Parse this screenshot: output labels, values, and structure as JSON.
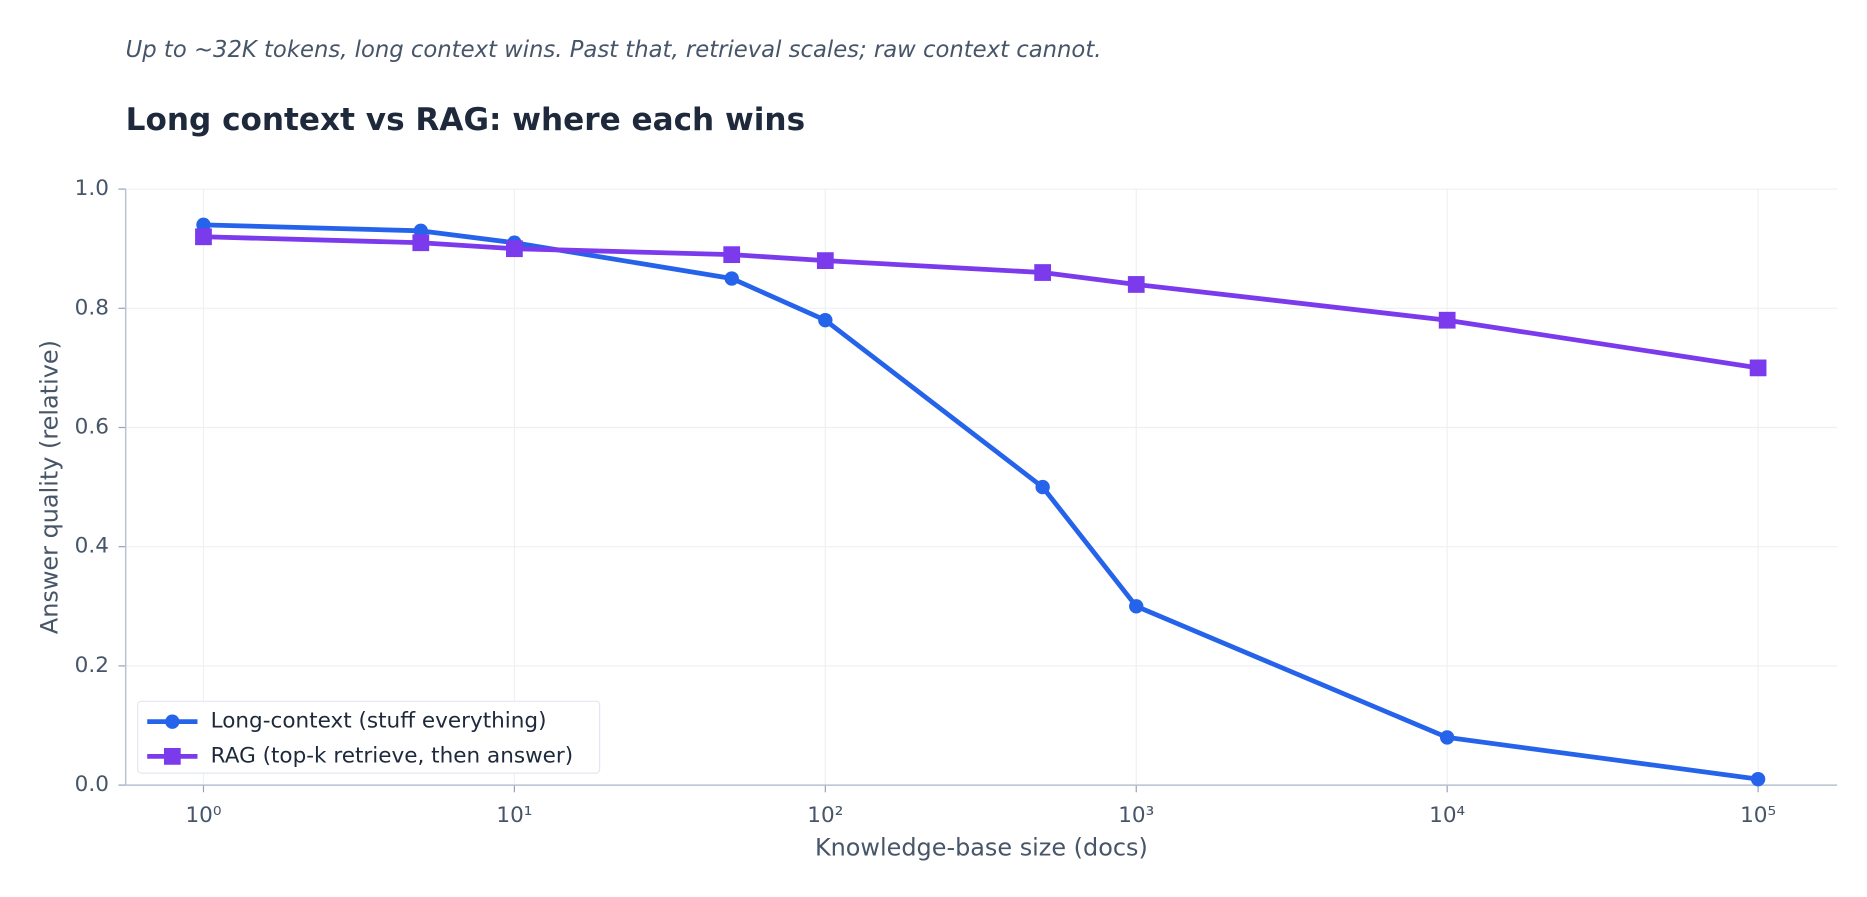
{
  "chart_data": {
    "type": "line",
    "subtitle": "Up to ~32K tokens, long context wins. Past that, retrieval scales; raw context cannot.",
    "title": "Long context vs RAG: where each wins",
    "x_label": "Knowledge-base size (docs)",
    "y_label": "Answer quality (relative)",
    "x_scale": "log",
    "x": [
      1,
      5,
      10,
      50,
      100,
      500,
      1000,
      10000,
      100000
    ],
    "series": [
      {
        "name": "Long-context (stuff everything)",
        "color": "#2563eb",
        "marker": "circle",
        "values": [
          0.94,
          0.93,
          0.91,
          0.85,
          0.78,
          0.5,
          0.3,
          0.08,
          0.01
        ]
      },
      {
        "name": "RAG (top-k retrieve, then answer)",
        "color": "#7c3aed",
        "marker": "square",
        "values": [
          0.92,
          0.91,
          0.9,
          0.89,
          0.88,
          0.86,
          0.84,
          0.78,
          0.7
        ]
      }
    ],
    "xlim": [
      0.562,
      179500
    ],
    "xticks": [
      {
        "value": 1,
        "label": "10⁰"
      },
      {
        "value": 10,
        "label": "10¹"
      },
      {
        "value": 100,
        "label": "10²"
      },
      {
        "value": 1000,
        "label": "10³"
      },
      {
        "value": 10000,
        "label": "10⁴"
      },
      {
        "value": 100000,
        "label": "10⁵"
      }
    ],
    "ylim": [
      0,
      1
    ],
    "yticks": [
      {
        "value": 0,
        "label": "0.0"
      },
      0.2,
      0.4,
      0.6,
      0.8,
      {
        "value": 1,
        "label": "1.0"
      }
    ],
    "grid": true,
    "legend": "lower left"
  }
}
